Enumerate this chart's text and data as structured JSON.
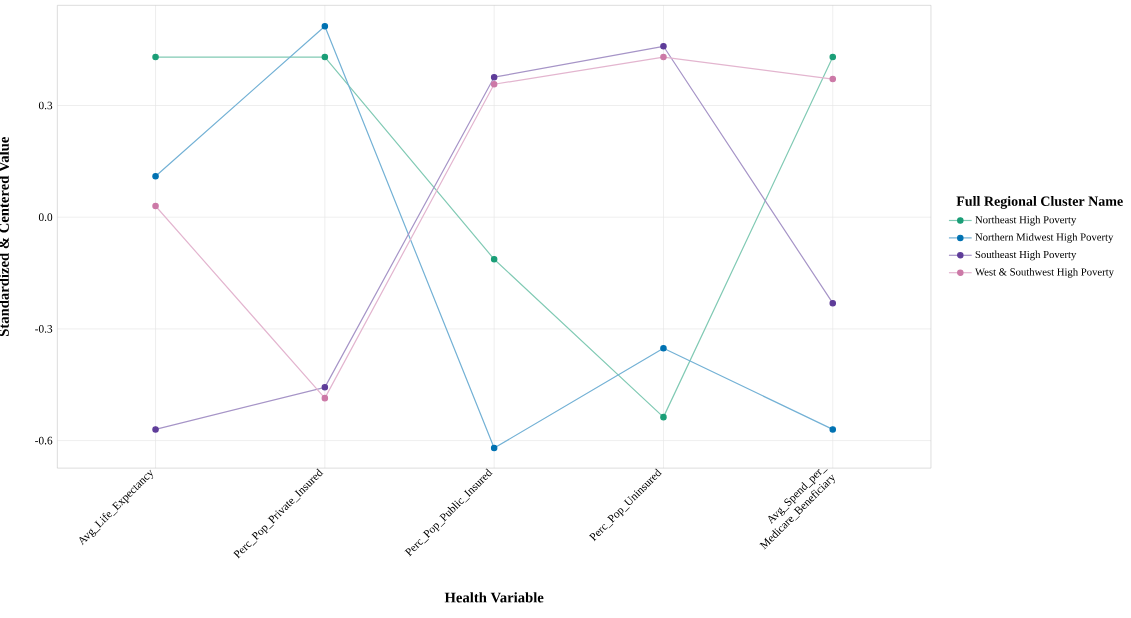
{
  "chart_data": {
    "type": "line",
    "xlabel": "Health Variable",
    "ylabel": "Standardized & Centered Value",
    "legend_title": "Full Regional Cluster Name",
    "categories": [
      "Avg_Life_Expectancy",
      "Perc_Pop_Private_Insured",
      "Perc_Pop_Public_Insured",
      "Perc_Pop_Uninsured",
      "Avg_Spend_per_\nMedicare_Beneficiary"
    ],
    "series": [
      {
        "name": "Northeast High Poverty",
        "color": "#1a9e77",
        "values": [
          0.43,
          0.43,
          -0.113,
          -0.537,
          0.43
        ]
      },
      {
        "name": "Northern Midwest High Poverty",
        "color": "#0072b2",
        "values": [
          0.11,
          0.513,
          -0.62,
          -0.352,
          -0.57
        ]
      },
      {
        "name": "Southeast High Poverty",
        "color": "#5e3c99",
        "values": [
          -0.57,
          -0.457,
          0.376,
          0.459,
          -0.231
        ]
      },
      {
        "name": "West & Southwest High Poverty",
        "color": "#cc79a7",
        "values": [
          0.03,
          -0.486,
          0.357,
          0.43,
          0.371
        ]
      }
    ],
    "ylim": [
      -0.674,
      0.569
    ],
    "yticks": [
      -0.6,
      -0.3,
      {
        "value": 0.0,
        "label": "0.0"
      },
      0.3
    ],
    "grid": true,
    "legend": "right",
    "marker": "circle",
    "line_style": "solid"
  }
}
